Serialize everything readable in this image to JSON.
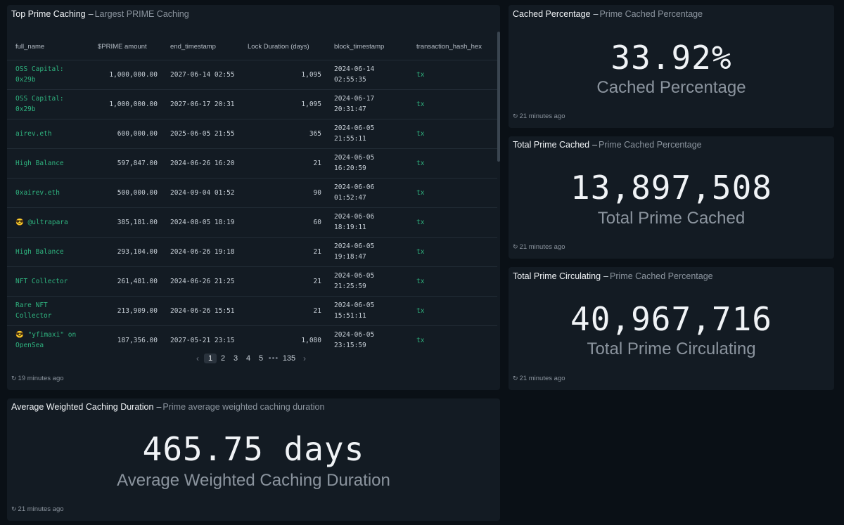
{
  "top_prime": {
    "title": "Top Prime Caching",
    "subtitle": "Largest PRIME Caching",
    "columns": [
      "full_name",
      "$PRIME amount",
      "end_timestamp",
      "Lock Duration (days)",
      "block_timestamp",
      "transaction_hash_hex"
    ],
    "rows": [
      {
        "name": "OSS Capital: 0x29b",
        "amount": "1,000,000.00",
        "end": "2027-06-14 02:55",
        "lock": "1,095",
        "block": "2024-06-14 02:55:35",
        "tx": "tx"
      },
      {
        "name": "OSS Capital: 0x29b",
        "amount": "1,000,000.00",
        "end": "2027-06-17 20:31",
        "lock": "1,095",
        "block": "2024-06-17 20:31:47",
        "tx": "tx"
      },
      {
        "name": "airev.eth",
        "amount": "600,000.00",
        "end": "2025-06-05 21:55",
        "lock": "365",
        "block": "2024-06-05 21:55:11",
        "tx": "tx"
      },
      {
        "name": "High Balance",
        "amount": "597,847.00",
        "end": "2024-06-26 16:20",
        "lock": "21",
        "block": "2024-06-05 16:20:59",
        "tx": "tx"
      },
      {
        "name": "0xairev.eth",
        "amount": "500,000.00",
        "end": "2024-09-04 01:52",
        "lock": "90",
        "block": "2024-06-06 01:52:47",
        "tx": "tx"
      },
      {
        "name": "😎 @ultrapara",
        "amount": "385,181.00",
        "end": "2024-08-05 18:19",
        "lock": "60",
        "block": "2024-06-06 18:19:11",
        "tx": "tx"
      },
      {
        "name": "High Balance",
        "amount": "293,104.00",
        "end": "2024-06-26 19:18",
        "lock": "21",
        "block": "2024-06-05 19:18:47",
        "tx": "tx"
      },
      {
        "name": "NFT Collector",
        "amount": "261,481.00",
        "end": "2024-06-26 21:25",
        "lock": "21",
        "block": "2024-06-05 21:25:59",
        "tx": "tx"
      },
      {
        "name": "Rare NFT Collector",
        "amount": "213,909.00",
        "end": "2024-06-26 15:51",
        "lock": "21",
        "block": "2024-06-05 15:51:11",
        "tx": "tx"
      },
      {
        "name": "😎 \"yfimaxi\" on OpenSea",
        "amount": "187,356.00",
        "end": "2027-05-21 23:15",
        "lock": "1,080",
        "block": "2024-06-05 23:15:59",
        "tx": "tx"
      }
    ],
    "pagination": {
      "prev": "‹",
      "pages": [
        "1",
        "2",
        "3",
        "4",
        "5"
      ],
      "ellipsis": "•••",
      "last": "135",
      "next": "›"
    },
    "refreshed": "19 minutes ago"
  },
  "cached_pct": {
    "title": "Cached Percentage",
    "subtitle": "Prime Cached Percentage",
    "value": "33.92%",
    "label": "Cached Percentage",
    "refreshed": "21 minutes ago"
  },
  "total_cached": {
    "title": "Total Prime Cached",
    "subtitle": "Prime Cached Percentage",
    "value": "13,897,508",
    "label": "Total Prime Cached",
    "refreshed": "21 minutes ago"
  },
  "total_circ": {
    "title": "Total Prime Circulating",
    "subtitle": "Prime Cached Percentage",
    "value": "40,967,716",
    "label": "Total Prime Circulating",
    "refreshed": "21 minutes ago"
  },
  "avg_duration": {
    "title": "Average Weighted Caching Duration",
    "subtitle": "Prime average weighted caching duration",
    "value": "465.75 days",
    "label": "Average Weighted Caching Duration",
    "refreshed": "21 minutes ago"
  },
  "colors": {
    "background": "#0a1016",
    "panel": "#131b23",
    "link": "#2fb37f",
    "muted": "#8b949e"
  },
  "separator": "–",
  "refresh_icon": "refresh-icon"
}
